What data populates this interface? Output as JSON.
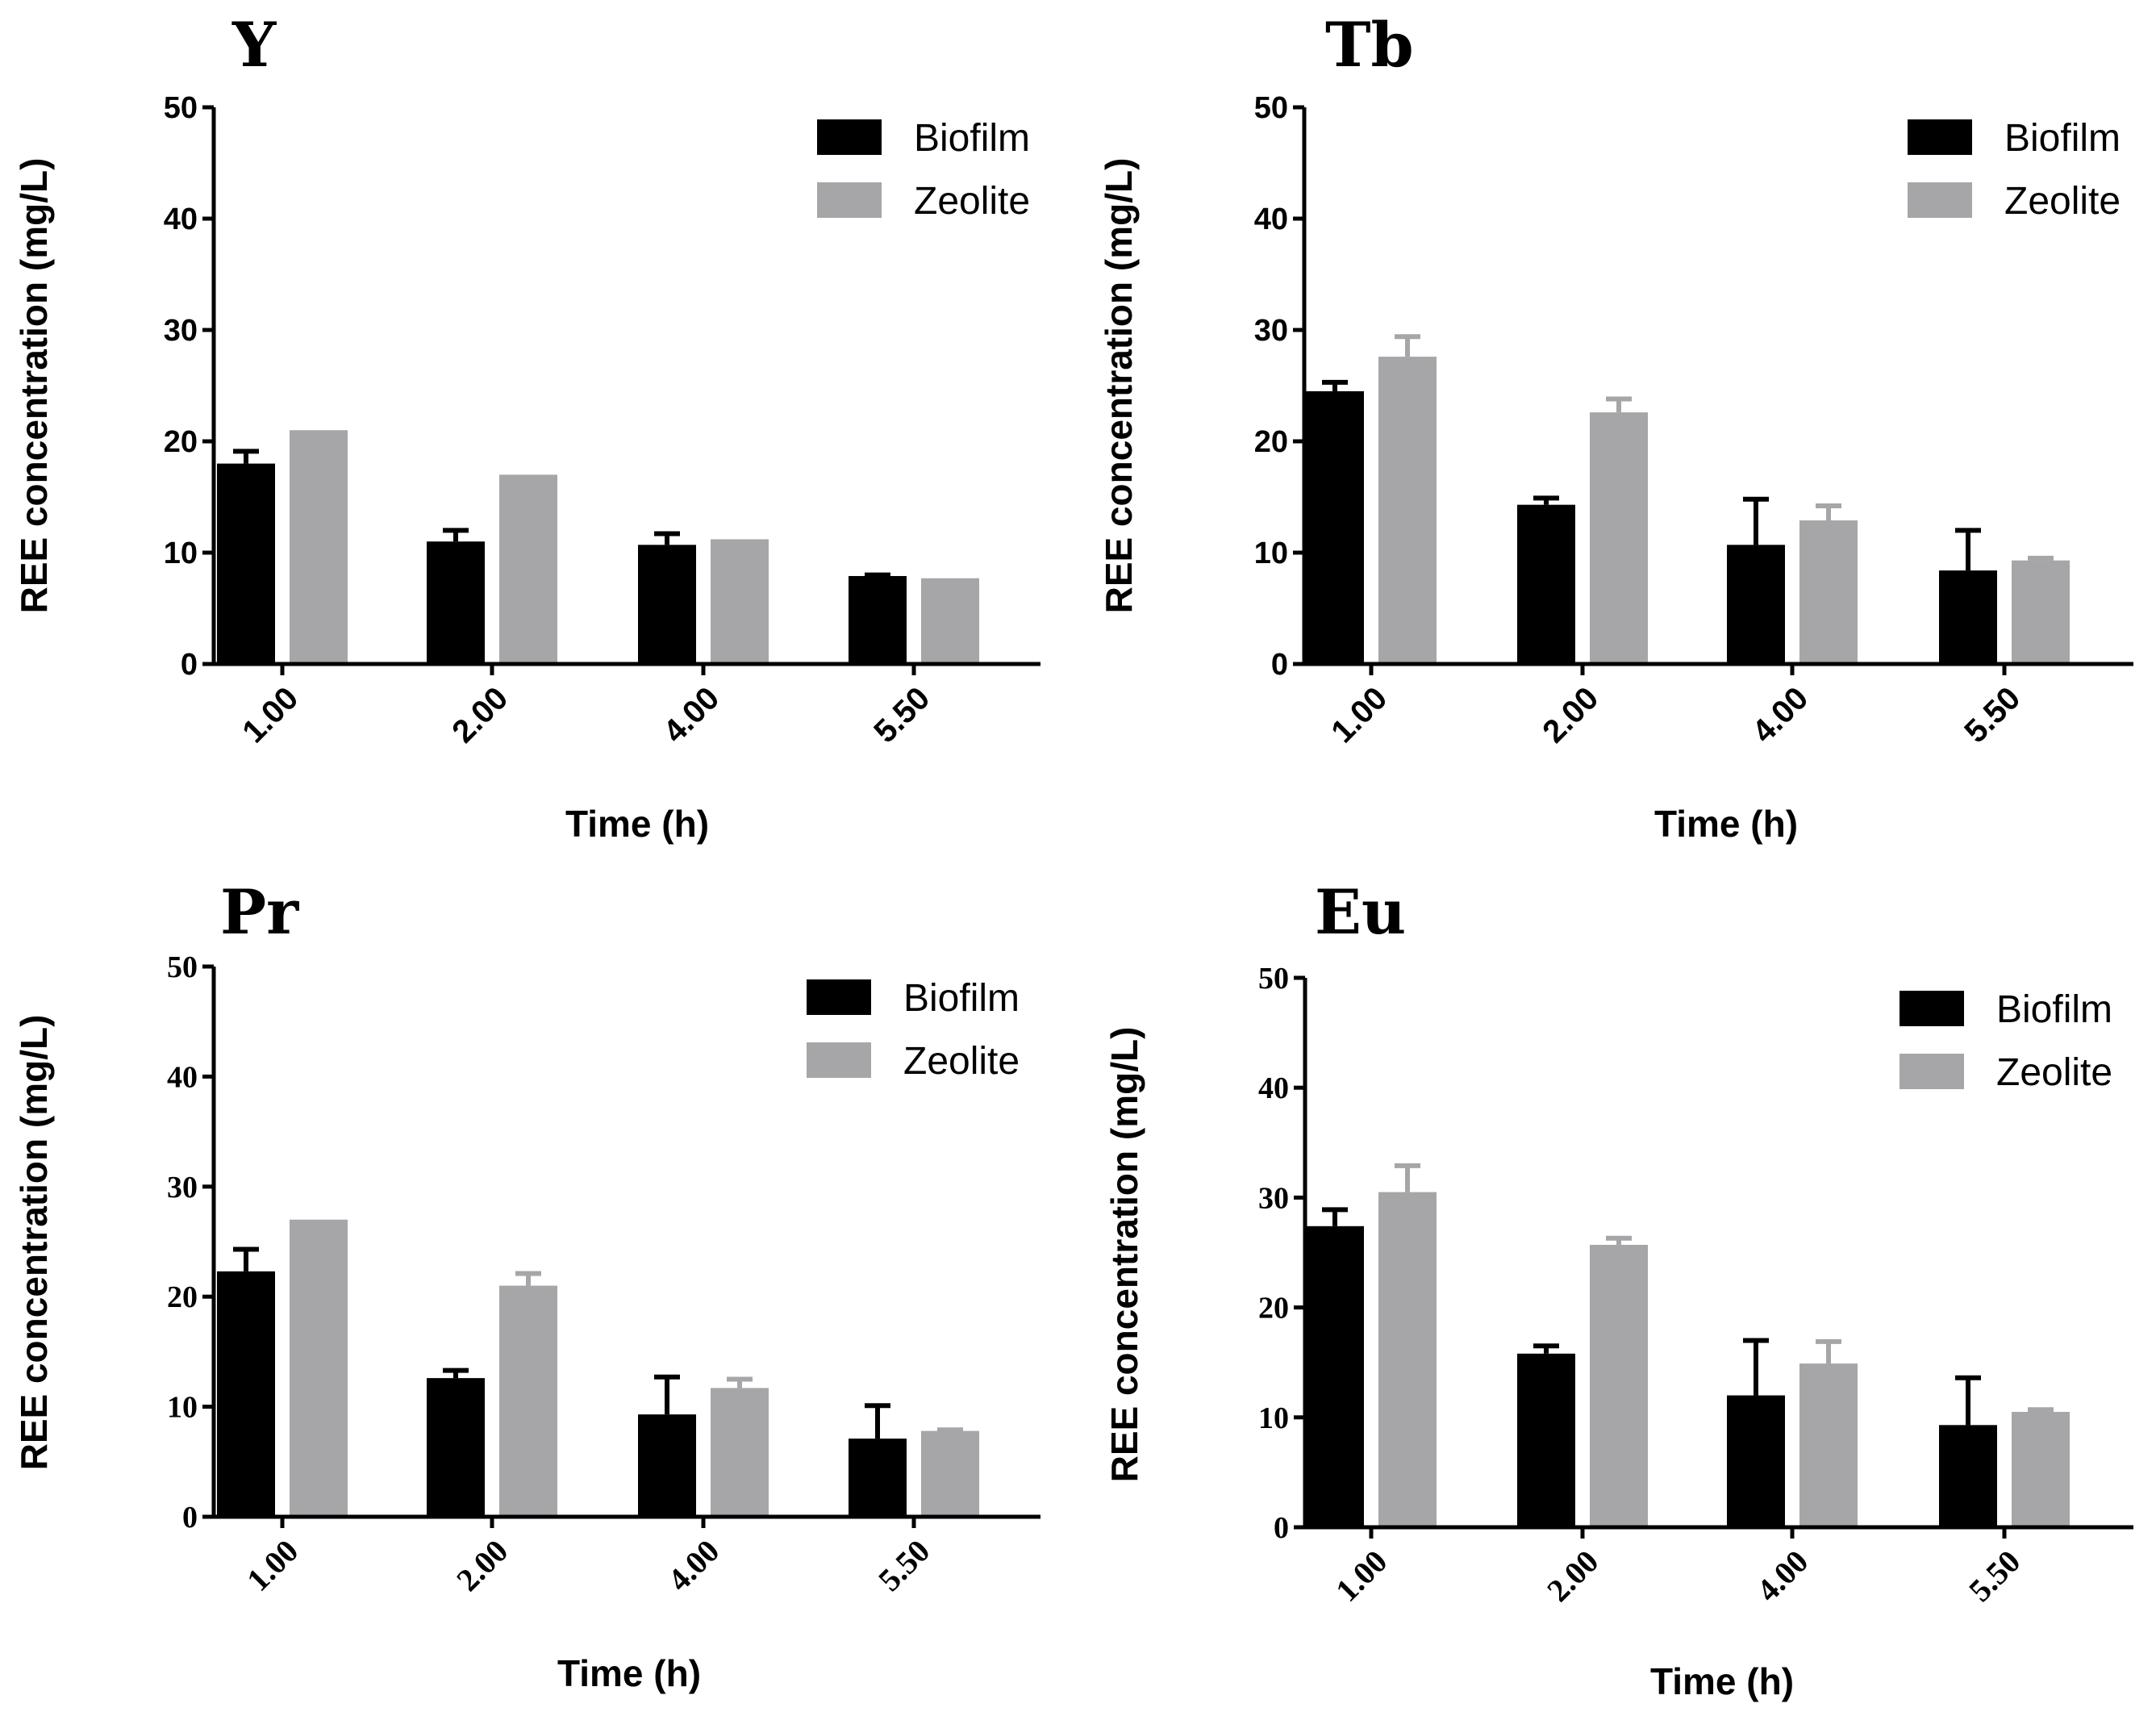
{
  "chart_data": [
    {
      "type": "bar",
      "title": "Y",
      "xlabel": "Time (h)",
      "ylabel": "REE concentration (mg/L)",
      "categories": [
        "1.00",
        "2.00",
        "4.00",
        "5.50"
      ],
      "ylim": [
        0,
        50
      ],
      "yticks": [
        "0",
        "10",
        "20",
        "30",
        "40",
        "50"
      ],
      "legend_position": "top-right",
      "series": [
        {
          "name": "Biofilm",
          "color": "#000000",
          "values": [
            18.0,
            11.0,
            10.7,
            7.9
          ],
          "errors": [
            1.1,
            1.0,
            1.0,
            0.1
          ]
        },
        {
          "name": "Zeolite",
          "color": "#a6a6a8",
          "values": [
            21.0,
            17.0,
            11.2,
            7.7
          ],
          "errors": [
            0.0,
            0.0,
            0.0,
            0.0
          ]
        }
      ]
    },
    {
      "type": "bar",
      "title": "Tb",
      "xlabel": "Time (h)",
      "ylabel": "REE concentration (mg/L)",
      "categories": [
        "1.00",
        "2.00",
        "4.00",
        "5.50"
      ],
      "ylim": [
        0,
        50
      ],
      "yticks": [
        "0",
        "10",
        "20",
        "30",
        "40",
        "50"
      ],
      "legend_position": "top-right",
      "series": [
        {
          "name": "Biofilm",
          "color": "#000000",
          "values": [
            24.5,
            14.3,
            10.7,
            8.4
          ],
          "errors": [
            0.8,
            0.6,
            4.1,
            3.6
          ]
        },
        {
          "name": "Zeolite",
          "color": "#a6a6a8",
          "values": [
            27.6,
            22.6,
            12.9,
            9.3
          ],
          "errors": [
            1.8,
            1.2,
            1.3,
            0.2
          ]
        }
      ]
    },
    {
      "type": "bar",
      "title": "Pr",
      "xlabel": "Time (h)",
      "ylabel": "REE concentration (mg/L)",
      "categories": [
        "1.00",
        "2.00",
        "4.00",
        "5.50"
      ],
      "ylim": [
        0,
        50
      ],
      "yticks": [
        "0",
        "10",
        "20",
        "30",
        "40",
        "50"
      ],
      "legend_position": "top-right",
      "series": [
        {
          "name": "Biofilm",
          "color": "#000000",
          "values": [
            22.3,
            12.6,
            9.3,
            7.1
          ],
          "errors": [
            2.0,
            0.7,
            3.4,
            3.0
          ]
        },
        {
          "name": "Zeolite",
          "color": "#a6a6a8",
          "values": [
            27.0,
            21.0,
            11.7,
            7.8
          ],
          "errors": [
            0.0,
            1.1,
            0.8,
            0.1
          ]
        }
      ]
    },
    {
      "type": "bar",
      "title": "Eu",
      "xlabel": "Time (h)",
      "ylabel": "REE concentration (mg/L)",
      "categories": [
        "1.00",
        "2.00",
        "4.00",
        "5.50"
      ],
      "ylim": [
        0,
        50
      ],
      "yticks": [
        "0",
        "10",
        "20",
        "30",
        "40",
        "50"
      ],
      "legend_position": "top-right",
      "series": [
        {
          "name": "Biofilm",
          "color": "#000000",
          "values": [
            27.4,
            15.8,
            12.0,
            9.3
          ],
          "errors": [
            1.5,
            0.7,
            5.0,
            4.3
          ]
        },
        {
          "name": "Zeolite",
          "color": "#a6a6a8",
          "values": [
            30.5,
            25.7,
            14.9,
            10.5
          ],
          "errors": [
            2.4,
            0.6,
            2.0,
            0.2
          ]
        }
      ]
    }
  ]
}
